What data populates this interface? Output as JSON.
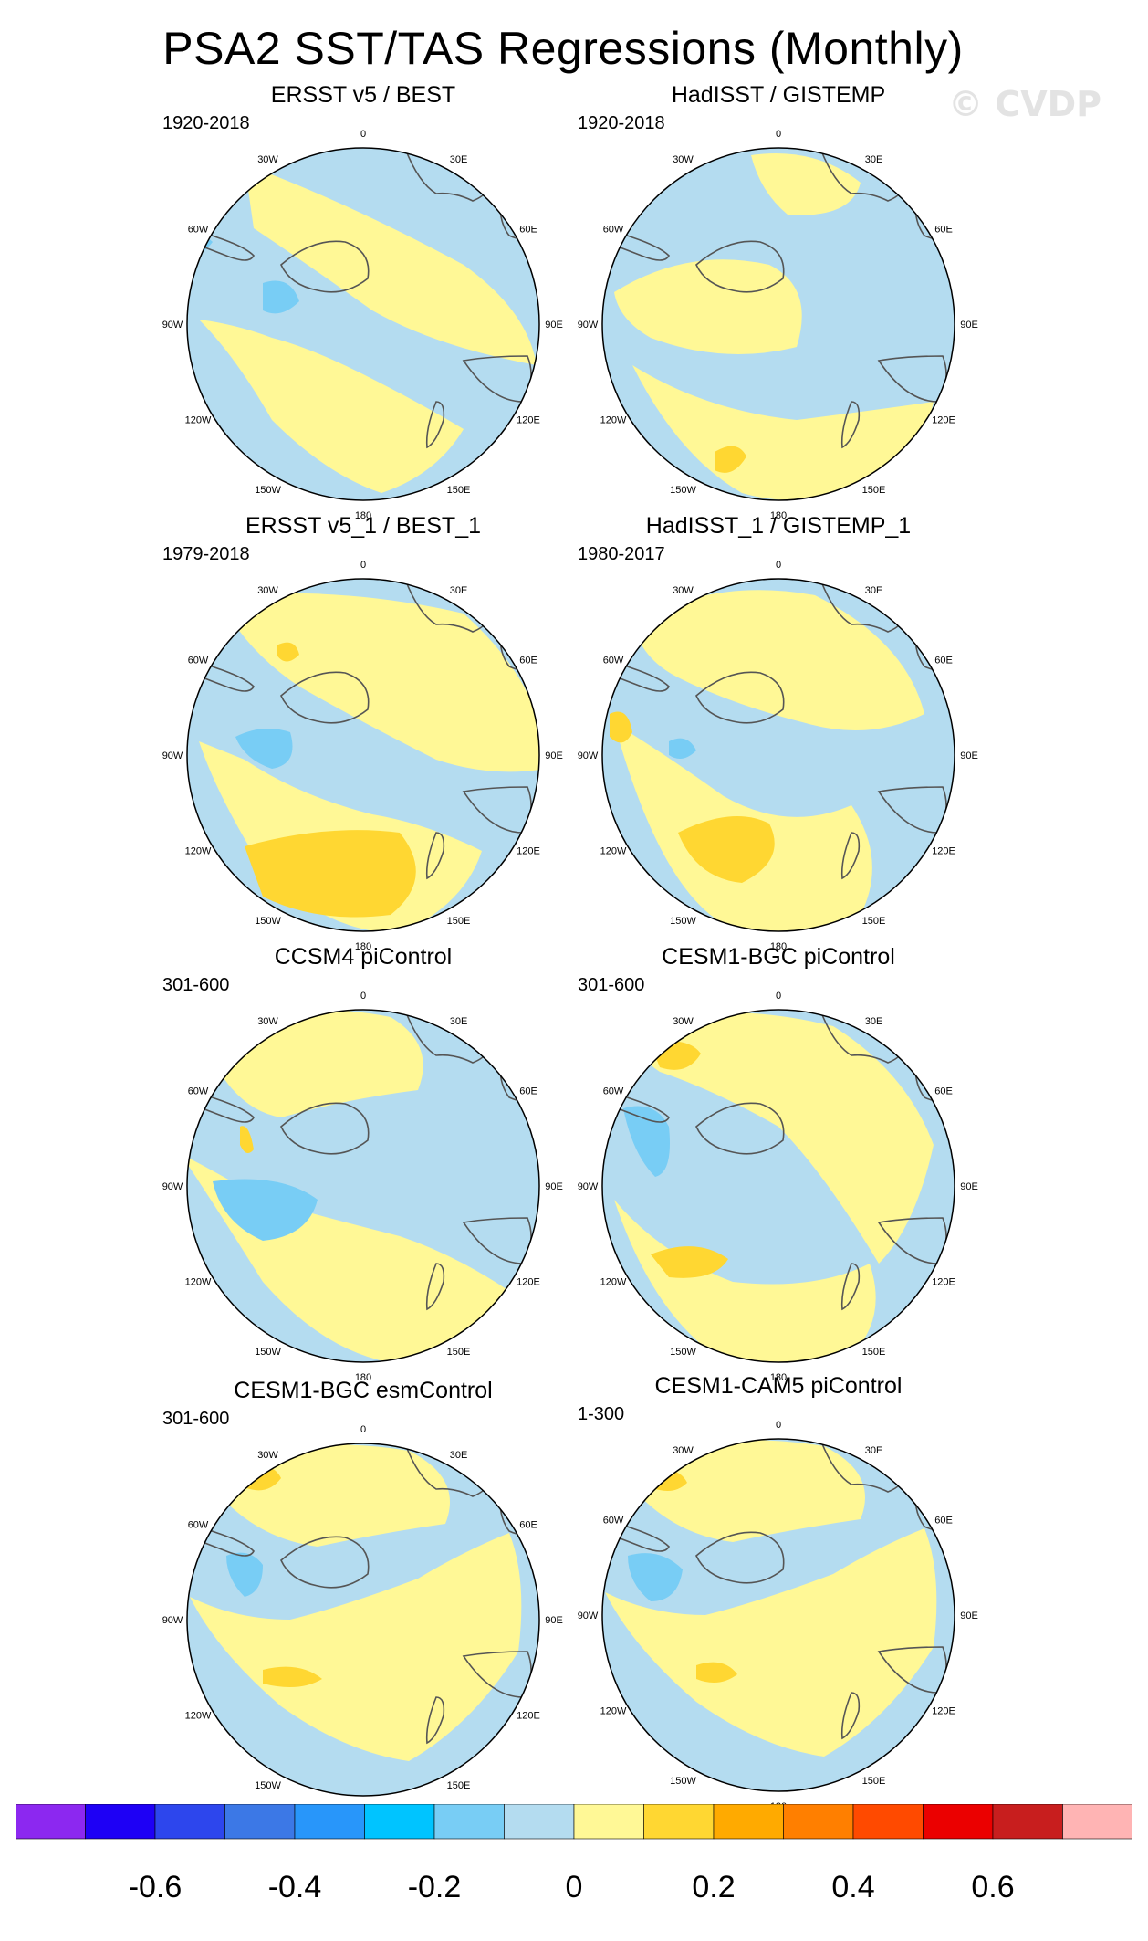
{
  "figure": {
    "title": "PSA2 SST/TAS Regressions (Monthly)",
    "watermark": "© CVDP"
  },
  "panels": [
    {
      "title": "ERSST v5 / BEST",
      "period": "1920-2018",
      "pattern": 0
    },
    {
      "title": "HadISST / GISTEMP",
      "period": "1920-2018",
      "pattern": 1
    },
    {
      "title": "ERSST v5_1 / BEST_1",
      "period": "1979-2018",
      "pattern": 2
    },
    {
      "title": "HadISST_1 / GISTEMP_1",
      "period": "1980-2017",
      "pattern": 3
    },
    {
      "title": "CCSM4 piControl",
      "period": "301-600",
      "pattern": 4
    },
    {
      "title": "CESM1-BGC piControl",
      "period": "301-600",
      "pattern": 5
    },
    {
      "title": "CESM1-BGC esmControl",
      "period": "301-600",
      "pattern": 6
    },
    {
      "title": "CESM1-CAM5 piControl",
      "period": "1-300",
      "pattern": 7
    }
  ],
  "longitude_labels": [
    "0",
    "30E",
    "60E",
    "90E",
    "120E",
    "150E",
    "180",
    "150W",
    "120W",
    "90W",
    "60W",
    "30W"
  ],
  "colorbar": {
    "colors": [
      "#8c28f0",
      "#1e00f5",
      "#2d46ed",
      "#3c78e6",
      "#2896fa",
      "#00c4ff",
      "#78cdf5",
      "#b4dcf0",
      "#fff896",
      "#ffd732",
      "#ffaa00",
      "#ff7f00",
      "#ff4a00",
      "#eb0000",
      "#c81e1e",
      "#ffb4b4"
    ],
    "tick_labels": [
      "-0.6",
      "-0.4",
      "-0.2",
      "0",
      "0.2",
      "0.4",
      "0.6"
    ],
    "tick_positions": [
      2,
      4,
      6,
      8,
      10,
      12,
      14
    ]
  }
}
